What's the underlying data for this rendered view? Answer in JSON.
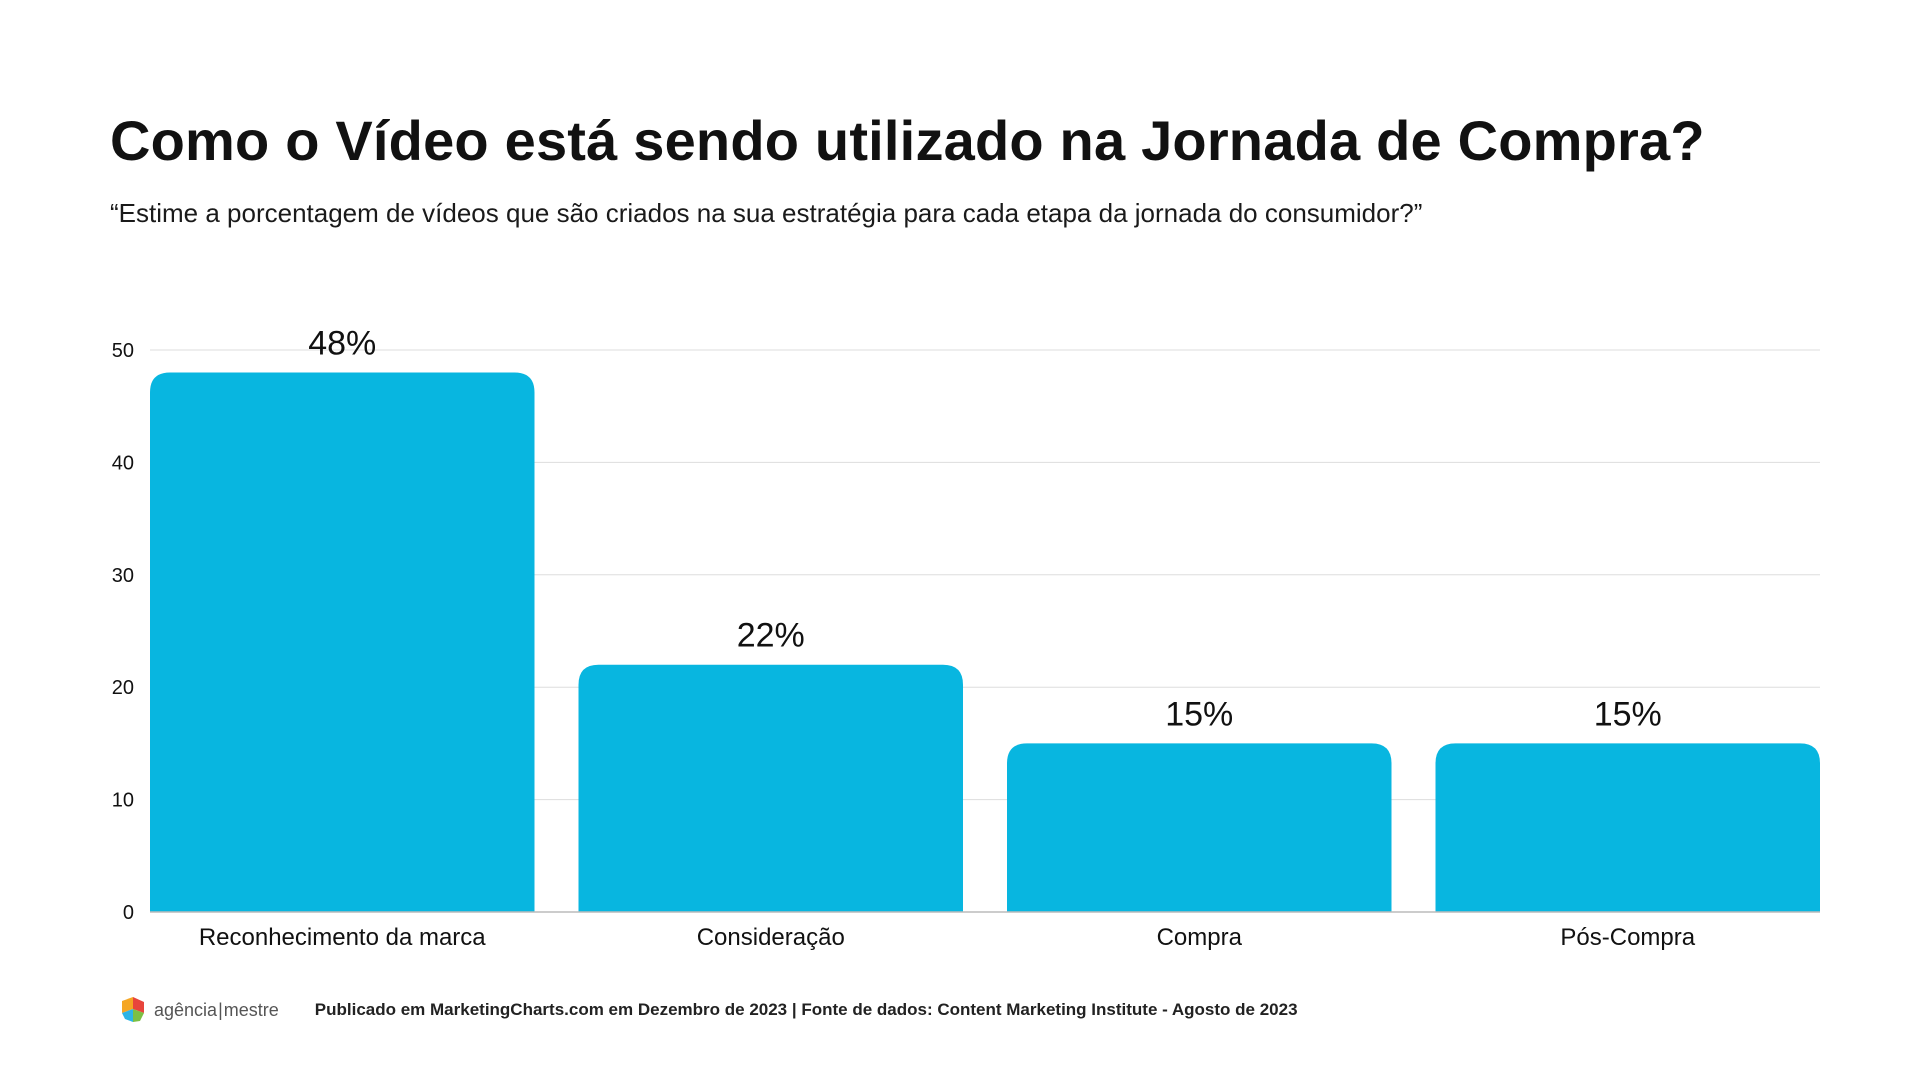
{
  "header": {
    "title": "Como o Vídeo está sendo utilizado na Jornada de Compra?",
    "subtitle": "“Estime a porcentagem de vídeos que são criados na sua estratégia para cada etapa da jornada do consumidor?”"
  },
  "chart_data": {
    "type": "bar",
    "categories": [
      "Reconhecimento da marca",
      "Consideração",
      "Compra",
      "Pós-Compra"
    ],
    "values": [
      48,
      22,
      15,
      15
    ],
    "data_labels": [
      "48%",
      "22%",
      "15%",
      "15%"
    ],
    "yticks": [
      "0",
      "10",
      "20",
      "30",
      "40",
      "50"
    ],
    "ylim": [
      0,
      50
    ],
    "grid": true,
    "legend": "none",
    "bar_color": "#08B6E0",
    "grid_color": "#DDDDDD"
  },
  "footer": {
    "logo_icon": "agencia-mestre-logo-icon",
    "logo_left": "agência",
    "logo_sep": "|",
    "logo_right": "mestre",
    "source": "Publicado em MarketingCharts.com em Dezembro de 2023 | Fonte de dados: Content Marketing Institute - Agosto de 2023"
  }
}
